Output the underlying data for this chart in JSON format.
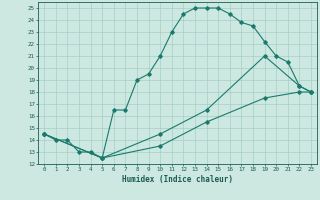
{
  "xlabel": "Humidex (Indice chaleur)",
  "ylabel": "",
  "bg_color": "#cce8e0",
  "line_color": "#1a7a6e",
  "xlim": [
    -0.5,
    23.5
  ],
  "ylim": [
    12,
    25.5
  ],
  "xticks": [
    0,
    1,
    2,
    3,
    4,
    5,
    6,
    7,
    8,
    9,
    10,
    11,
    12,
    13,
    14,
    15,
    16,
    17,
    18,
    19,
    20,
    21,
    22,
    23
  ],
  "yticks": [
    12,
    13,
    14,
    15,
    16,
    17,
    18,
    19,
    20,
    21,
    22,
    23,
    24,
    25
  ],
  "line1_x": [
    0,
    1,
    2,
    3,
    4,
    5,
    6,
    7,
    8,
    9,
    10,
    11,
    12,
    13,
    14,
    15,
    16,
    17,
    18,
    19,
    20,
    21,
    22,
    23
  ],
  "line1_y": [
    14.5,
    14.0,
    14.0,
    13.0,
    13.0,
    12.5,
    16.5,
    16.5,
    19.0,
    19.5,
    21.0,
    23.0,
    24.5,
    25.0,
    25.0,
    25.0,
    24.5,
    23.8,
    23.5,
    22.2,
    21.0,
    20.5,
    18.5,
    18.0
  ],
  "line2_x": [
    0,
    5,
    10,
    14,
    19,
    22,
    23
  ],
  "line2_y": [
    14.5,
    12.5,
    13.5,
    15.5,
    17.5,
    18.0,
    18.0
  ],
  "line3_x": [
    0,
    5,
    10,
    14,
    19,
    22,
    23
  ],
  "line3_y": [
    14.5,
    12.5,
    14.5,
    16.5,
    21.0,
    18.5,
    18.0
  ]
}
